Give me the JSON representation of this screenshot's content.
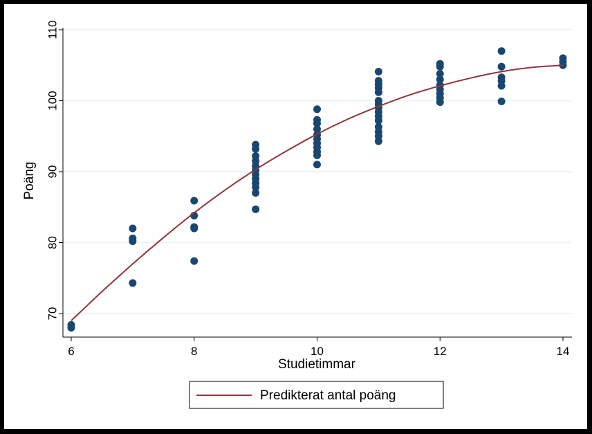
{
  "colors": {
    "points": "#1a476f",
    "fit_line": "#90353b",
    "grid": "#eaf2f3",
    "axis": "#000000",
    "frame_outer": "#000000",
    "background": "#ffffff"
  },
  "chart_data": {
    "type": "scatter",
    "xlabel": "Studietimmar",
    "ylabel": "Poäng",
    "xlim": [
      6,
      14
    ],
    "ylim": [
      67,
      110
    ],
    "xticks": [
      6,
      8,
      10,
      12,
      14
    ],
    "yticks": [
      70,
      80,
      90,
      100,
      110
    ],
    "grid": true,
    "legend": {
      "position": "bottom-center",
      "entries": [
        "Predikterat antal poäng"
      ]
    },
    "points": [
      {
        "x": 6,
        "y": 68.0
      },
      {
        "x": 6,
        "y": 68.4
      },
      {
        "x": 7,
        "y": 82.0
      },
      {
        "x": 7,
        "y": 80.6
      },
      {
        "x": 7,
        "y": 80.2
      },
      {
        "x": 7,
        "y": 74.3
      },
      {
        "x": 8,
        "y": 85.9
      },
      {
        "x": 8,
        "y": 83.8
      },
      {
        "x": 8,
        "y": 82.2
      },
      {
        "x": 8,
        "y": 82.0
      },
      {
        "x": 8,
        "y": 77.4
      },
      {
        "x": 9,
        "y": 93.8
      },
      {
        "x": 9,
        "y": 93.2
      },
      {
        "x": 9,
        "y": 92.2
      },
      {
        "x": 9,
        "y": 91.5
      },
      {
        "x": 9,
        "y": 90.8
      },
      {
        "x": 9,
        "y": 90.2
      },
      {
        "x": 9,
        "y": 89.6
      },
      {
        "x": 9,
        "y": 89.0
      },
      {
        "x": 9,
        "y": 88.4
      },
      {
        "x": 9,
        "y": 87.8
      },
      {
        "x": 9,
        "y": 87.0
      },
      {
        "x": 9,
        "y": 84.7
      },
      {
        "x": 10,
        "y": 98.8
      },
      {
        "x": 10,
        "y": 97.3
      },
      {
        "x": 10,
        "y": 96.8
      },
      {
        "x": 10,
        "y": 96.0
      },
      {
        "x": 10,
        "y": 95.2
      },
      {
        "x": 10,
        "y": 94.6
      },
      {
        "x": 10,
        "y": 94.0
      },
      {
        "x": 10,
        "y": 93.4
      },
      {
        "x": 10,
        "y": 92.8
      },
      {
        "x": 10,
        "y": 92.3
      },
      {
        "x": 10,
        "y": 91.0
      },
      {
        "x": 11,
        "y": 104.1
      },
      {
        "x": 11,
        "y": 102.8
      },
      {
        "x": 11,
        "y": 102.3
      },
      {
        "x": 11,
        "y": 101.8
      },
      {
        "x": 11,
        "y": 101.2
      },
      {
        "x": 11,
        "y": 100.0
      },
      {
        "x": 11,
        "y": 99.5
      },
      {
        "x": 11,
        "y": 99.0
      },
      {
        "x": 11,
        "y": 98.4
      },
      {
        "x": 11,
        "y": 97.8
      },
      {
        "x": 11,
        "y": 97.2
      },
      {
        "x": 11,
        "y": 96.3
      },
      {
        "x": 11,
        "y": 95.6
      },
      {
        "x": 11,
        "y": 95.0
      },
      {
        "x": 11,
        "y": 94.3
      },
      {
        "x": 12,
        "y": 105.2
      },
      {
        "x": 12,
        "y": 104.8
      },
      {
        "x": 12,
        "y": 103.8
      },
      {
        "x": 12,
        "y": 103.0
      },
      {
        "x": 12,
        "y": 102.2
      },
      {
        "x": 12,
        "y": 101.6
      },
      {
        "x": 12,
        "y": 101.0
      },
      {
        "x": 12,
        "y": 100.4
      },
      {
        "x": 12,
        "y": 99.8
      },
      {
        "x": 13,
        "y": 107.0
      },
      {
        "x": 13,
        "y": 104.8
      },
      {
        "x": 13,
        "y": 103.3
      },
      {
        "x": 13,
        "y": 102.8
      },
      {
        "x": 13,
        "y": 102.1
      },
      {
        "x": 13,
        "y": 99.9
      },
      {
        "x": 14,
        "y": 106.0
      },
      {
        "x": 14,
        "y": 105.5
      },
      {
        "x": 14,
        "y": 105.0
      }
    ],
    "fit_line": {
      "name": "Predikterat antal poäng",
      "x": [
        6,
        6.5,
        7,
        7.5,
        8,
        8.5,
        9,
        9.5,
        10,
        10.5,
        11,
        11.5,
        12,
        12.5,
        13,
        13.5,
        14
      ],
      "y": [
        69.0,
        73.1,
        77.0,
        80.7,
        84.2,
        87.4,
        90.3,
        92.9,
        95.3,
        97.4,
        99.2,
        100.8,
        102.1,
        103.2,
        104.1,
        104.7,
        105.0
      ]
    }
  }
}
